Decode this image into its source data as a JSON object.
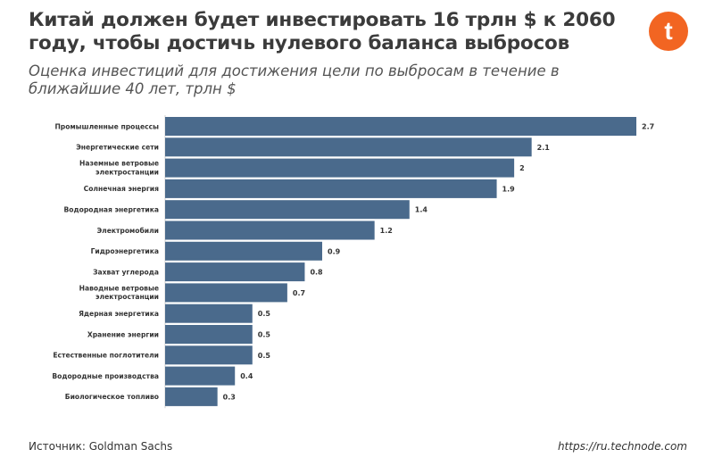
{
  "header": {
    "title": "Китай должен будет инвестировать 16 трлн $ к 2060 году, чтобы достичь нулевого баланса выбросов",
    "subtitle": "Оценка инвестиций для достижения цели по выбросам в течение в ближайшие 40 лет, трлн $",
    "logo_letter": "t",
    "logo_color": "#f26522"
  },
  "footer": {
    "source": "Источник: Goldman Sachs",
    "url": "https://ru.technode.com"
  },
  "chart_data": {
    "type": "bar",
    "orientation": "horizontal",
    "categories": [
      "Промышленные процессы",
      "Энергетические сети",
      "Наземные ветровые электростанции",
      "Солнечная энергия",
      "Водородная энергетика",
      "Электромобили",
      "Гидроэнергетика",
      "Захват углерода",
      "Наводные ветровые электростанции",
      "Ядерная энергетика",
      "Хранение энергии",
      "Естественные поглотители",
      "Водородные производства",
      "Биологическое топливо"
    ],
    "values": [
      2.7,
      2.1,
      2,
      1.9,
      1.4,
      1.2,
      0.9,
      0.8,
      0.7,
      0.5,
      0.5,
      0.5,
      0.4,
      0.3
    ],
    "value_labels": [
      "2.7",
      "2.1",
      "2",
      "1.9",
      "1.4",
      "1.2",
      "0.9",
      "0.8",
      "0.7",
      "0.5",
      "0.5",
      "0.5",
      "0.4",
      "0.3"
    ],
    "xlim": [
      0,
      2.7
    ],
    "bar_color": "#4a6a8c",
    "grid": false,
    "legend": "none"
  }
}
